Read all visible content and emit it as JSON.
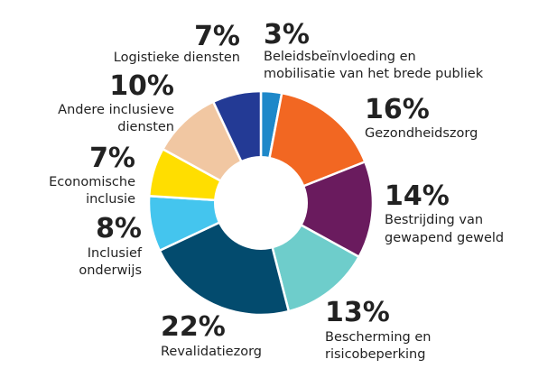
{
  "chart_data": {
    "type": "pie",
    "title": "",
    "legend": "none",
    "unit": "%",
    "slices": [
      {
        "label_lines": [
          "Beleidsbeïnvloeding en",
          "mobilisatie van het brede publiek"
        ],
        "value": 3,
        "display": "3%",
        "color": "#1e88c9"
      },
      {
        "label_lines": [
          "Gezondheidszorg"
        ],
        "value": 16,
        "display": "16%",
        "color": "#f26722"
      },
      {
        "label_lines": [
          "Bestrijding van",
          "gewapend geweld"
        ],
        "value": 14,
        "display": "14%",
        "color": "#6a1b5e"
      },
      {
        "label_lines": [
          "Bescherming en",
          "risicobeperking"
        ],
        "value": 13,
        "display": "13%",
        "color": "#6ecdcb"
      },
      {
        "label_lines": [
          "Revalidatiezorg"
        ],
        "value": 22,
        "display": "22%",
        "color": "#034b6e"
      },
      {
        "label_lines": [
          "Inclusief",
          "onderwijs"
        ],
        "value": 8,
        "display": "8%",
        "color": "#44c5ee"
      },
      {
        "label_lines": [
          "Economische",
          "inclusie"
        ],
        "value": 7,
        "display": "7%",
        "color": "#ffde00"
      },
      {
        "label_lines": [
          "Andere inclusieve",
          "diensten"
        ],
        "value": 10,
        "display": "10%",
        "color": "#f1c7a2"
      },
      {
        "label_lines": [
          "Logistieke diensten"
        ],
        "value": 7,
        "display": "7%",
        "color": "#233a95"
      }
    ]
  }
}
